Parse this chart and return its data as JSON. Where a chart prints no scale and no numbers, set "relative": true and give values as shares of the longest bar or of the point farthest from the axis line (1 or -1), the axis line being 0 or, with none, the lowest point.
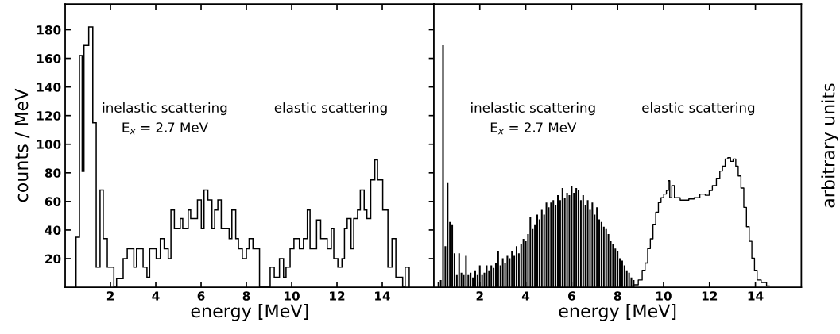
{
  "chart_data": [
    {
      "type": "histogram",
      "xlabel": "energy [MeV]",
      "ylabel": "counts / MeV",
      "annotations": [
        "inelastic scattering",
        "E$_{x}$ = 2.7 MeV",
        "elastic scattering"
      ],
      "color": "#000000",
      "bins": [
        0.48,
        0.63,
        0.75,
        0.83,
        1.04,
        1.22,
        1.37,
        1.54,
        1.68,
        1.86,
        2.15,
        2.27,
        2.56,
        2.74,
        3.03,
        3.15,
        3.44,
        3.61,
        3.73,
        4.02,
        4.2,
        4.37,
        4.55,
        4.67,
        4.82,
        5.08,
        5.19,
        5.43,
        5.54,
        5.84,
        6.01,
        6.13,
        6.3,
        6.48,
        6.6,
        6.74,
        6.89,
        7.24,
        7.36,
        7.53,
        7.65,
        7.82,
        8.0,
        8.12,
        8.29,
        8.58,
        9.05,
        9.23,
        9.46,
        9.64,
        9.75,
        9.93,
        10.1,
        10.34,
        10.52,
        10.69,
        10.81,
        11.1,
        11.28,
        11.57,
        11.75,
        11.86,
        12.04,
        12.22,
        12.33,
        12.45,
        12.62,
        12.74,
        12.91,
        13.03,
        13.2,
        13.32,
        13.49,
        13.67,
        13.79,
        14.02,
        14.25,
        14.43,
        14.6,
        14.9,
        15.01,
        15.19
      ],
      "values": [
        35,
        162,
        81,
        169,
        182,
        115,
        14,
        68,
        34,
        14,
        0,
        6,
        20,
        27,
        14,
        27,
        14,
        7,
        27,
        20,
        34,
        27,
        20,
        54,
        41,
        48,
        41,
        54,
        48,
        61,
        41,
        68,
        61,
        41,
        54,
        61,
        41,
        34,
        54,
        34,
        27,
        20,
        27,
        34,
        27,
        0,
        14,
        7,
        20,
        7,
        14,
        27,
        34,
        27,
        34,
        54,
        27,
        47,
        34,
        27,
        41,
        20,
        14,
        20,
        41,
        48,
        27,
        48,
        54,
        68,
        54,
        48,
        75,
        89,
        75,
        54,
        14,
        34,
        7,
        0,
        14
      ],
      "xlim": [
        0,
        16.3
      ],
      "xticks": [
        2,
        4,
        6,
        8,
        10,
        12,
        14
      ],
      "ylim": [
        0,
        198
      ],
      "yticks": [
        20,
        40,
        60,
        80,
        100,
        120,
        140,
        160,
        180
      ],
      "grid": false
    },
    {
      "type": "step",
      "relative": true,
      "xlabel": "energy [MeV]",
      "ylabel": "arbitrary units",
      "annotations": [
        "inelastic scattering",
        "E$_{x}$ = 2.7 MeV",
        "elastic scattering"
      ],
      "tick_labels": "x",
      "xlim": [
        0,
        16
      ],
      "xticks": [
        2,
        4,
        6,
        8,
        10,
        12,
        14
      ],
      "grid": false,
      "series": [
        {
          "type": "bar",
          "color": "#000000",
          "x": [
            0.2,
            0.3,
            0.4,
            0.5,
            0.6,
            0.7,
            0.8,
            0.9,
            1.0,
            1.1,
            1.2,
            1.3,
            1.4,
            1.5,
            1.6,
            1.7,
            1.8,
            1.9,
            2.0,
            2.1,
            2.2,
            2.3,
            2.4,
            2.5,
            2.6,
            2.7,
            2.8,
            2.9,
            3.0,
            3.1,
            3.2,
            3.3,
            3.4,
            3.5,
            3.6,
            3.7,
            3.8,
            3.9,
            4.0,
            4.1,
            4.2,
            4.3,
            4.4,
            4.5,
            4.6,
            4.7,
            4.8,
            4.9,
            5.0,
            5.1,
            5.2,
            5.3,
            5.4,
            5.5,
            5.6,
            5.7,
            5.8,
            5.9,
            6.0,
            6.1,
            6.2,
            6.3,
            6.4,
            6.5,
            6.6,
            6.7,
            6.8,
            6.9,
            7.0,
            7.1,
            7.2,
            7.3,
            7.4,
            7.5,
            7.6,
            7.7,
            7.8,
            7.9,
            8.0,
            8.1,
            8.2,
            8.3,
            8.4,
            8.5,
            8.6,
            8.7
          ],
          "values": [
            0.02,
            0.03,
            1.0,
            0.17,
            0.43,
            0.27,
            0.26,
            0.14,
            0.05,
            0.14,
            0.06,
            0.05,
            0.13,
            0.05,
            0.06,
            0.04,
            0.07,
            0.05,
            0.09,
            0.05,
            0.06,
            0.09,
            0.07,
            0.09,
            0.08,
            0.1,
            0.15,
            0.09,
            0.12,
            0.1,
            0.13,
            0.12,
            0.15,
            0.13,
            0.17,
            0.14,
            0.18,
            0.2,
            0.19,
            0.22,
            0.29,
            0.24,
            0.26,
            0.3,
            0.28,
            0.32,
            0.3,
            0.35,
            0.33,
            0.35,
            0.36,
            0.34,
            0.38,
            0.36,
            0.41,
            0.37,
            0.39,
            0.38,
            0.42,
            0.39,
            0.41,
            0.4,
            0.36,
            0.38,
            0.34,
            0.36,
            0.32,
            0.35,
            0.3,
            0.33,
            0.28,
            0.27,
            0.25,
            0.24,
            0.22,
            0.19,
            0.18,
            0.16,
            0.15,
            0.12,
            0.11,
            0.09,
            0.07,
            0.06,
            0.04,
            0.03
          ]
        },
        {
          "type": "step",
          "color": "#000000",
          "x": [
            8.6,
            8.8,
            9.0,
            9.14,
            9.25,
            9.37,
            9.48,
            9.6,
            9.72,
            9.83,
            9.95,
            10.07,
            10.18,
            10.24,
            10.3,
            10.42,
            10.53,
            10.65,
            10.8,
            11.0,
            11.2,
            11.46,
            11.7,
            11.93,
            12.05,
            12.2,
            12.4,
            12.5,
            12.63,
            12.74,
            12.86,
            12.97,
            13.09,
            13.2,
            13.3,
            13.44,
            13.55,
            13.67,
            13.79,
            13.9,
            14.02,
            14.13,
            14.37,
            14.6
          ],
          "values": [
            0.005,
            0.01,
            0.03,
            0.07,
            0.1,
            0.16,
            0.2,
            0.26,
            0.31,
            0.35,
            0.37,
            0.385,
            0.4,
            0.44,
            0.37,
            0.42,
            0.37,
            0.37,
            0.36,
            0.36,
            0.365,
            0.37,
            0.385,
            0.38,
            0.4,
            0.42,
            0.45,
            0.48,
            0.5,
            0.53,
            0.535,
            0.52,
            0.53,
            0.5,
            0.46,
            0.41,
            0.33,
            0.25,
            0.19,
            0.12,
            0.07,
            0.03,
            0.02,
            0.005
          ]
        }
      ]
    }
  ]
}
